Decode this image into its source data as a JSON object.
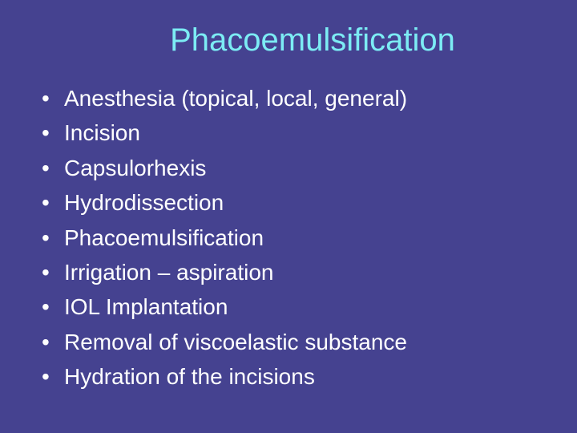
{
  "slide": {
    "background_color": "#454290",
    "title": "Phacoemulsification",
    "title_color": "#7cecf4",
    "title_fontsize": 40,
    "text_color": "#ffffff",
    "body_fontsize": 28,
    "bullets": [
      {
        "text": "Anesthesia (topical, local, general)"
      },
      {
        "text": "Incision"
      },
      {
        "text": "Capsulorhexis"
      },
      {
        "text": "Hydrodissection"
      },
      {
        "text": "Phacoemulsification"
      },
      {
        "text": "Irrigation – aspiration"
      },
      {
        "text": "IOL Implantation"
      },
      {
        "text": "Removal of viscoelastic substance"
      },
      {
        "text": "Hydration of the incisions"
      }
    ]
  }
}
